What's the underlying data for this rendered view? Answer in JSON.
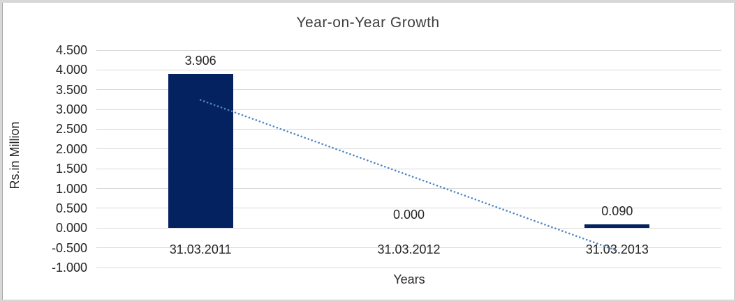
{
  "chart_data": {
    "type": "bar",
    "title": "Year-on-Year Growth",
    "xlabel": "Years",
    "ylabel": "Rs.in Million",
    "categories": [
      "31.03.2011",
      "31.03.2012",
      "31.03.2013"
    ],
    "values": [
      3.906,
      0.0,
      0.09
    ],
    "value_labels": [
      "3.906",
      "0.000",
      "0.090"
    ],
    "ylim": [
      -1.0,
      4.5
    ],
    "ytick_step": 0.5,
    "yticks": [
      "4.500",
      "4.000",
      "3.500",
      "3.000",
      "2.500",
      "2.000",
      "1.500",
      "1.000",
      "0.500",
      "0.000",
      "-0.500",
      "-1.000"
    ],
    "grid": "horizontal",
    "legend": "none",
    "bar_color": "#04225F",
    "gridline_color": "#D9D9D9",
    "text_color": "#262626",
    "trendline": {
      "style": "dotted",
      "color": "#4E86C6",
      "start_value": 3.24,
      "end_value": -0.576
    }
  }
}
